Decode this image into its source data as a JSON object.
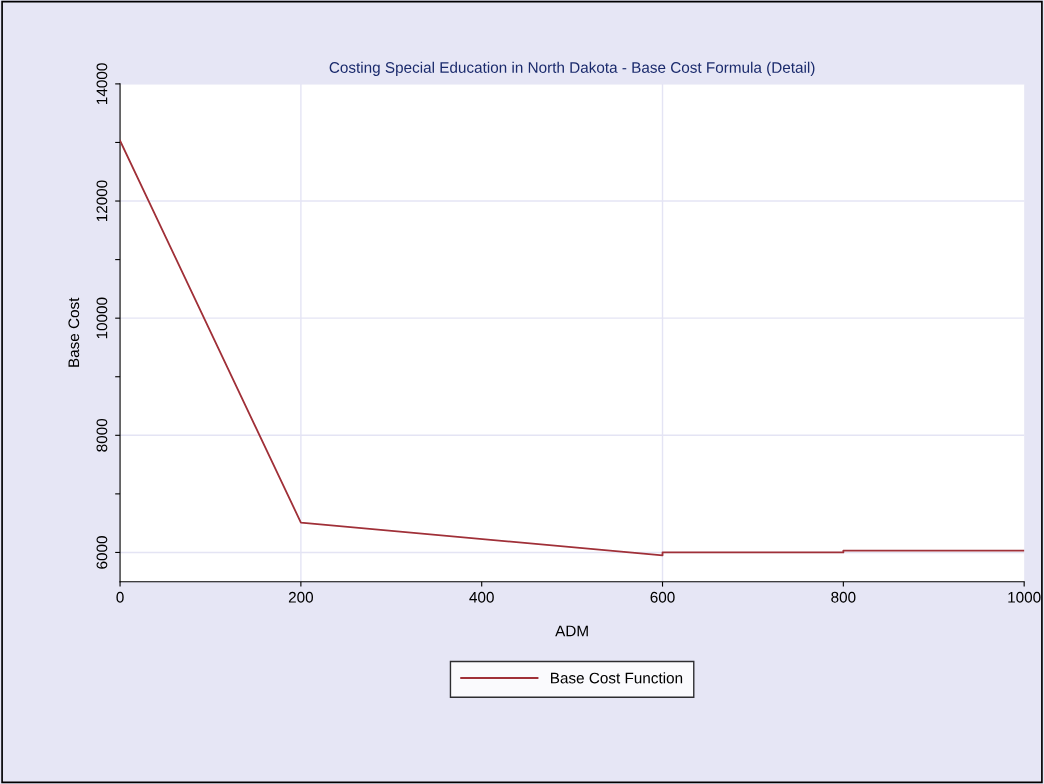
{
  "chart_data": {
    "type": "line",
    "title": "Costing Special Education in North Dakota - Base Cost Formula (Detail)",
    "xlabel": "ADM",
    "ylabel": "Base Cost",
    "x": [
      0,
      200,
      600,
      600,
      800,
      800,
      1000
    ],
    "series": [
      {
        "name": "Base Cost Function",
        "color": "#a03038",
        "values": [
          13030,
          6510,
          5950,
          6000,
          6000,
          6030,
          6030
        ]
      }
    ],
    "xlim": [
      0,
      1000
    ],
    "xticks": [
      0,
      200,
      400,
      600,
      800,
      1000
    ],
    "ylim": [
      5500,
      14000
    ],
    "yticks": [
      6000,
      {
        "value": 7000,
        "label": null
      },
      8000,
      {
        "value": 9000,
        "label": null
      },
      10000,
      {
        "value": 11000,
        "label": null
      },
      12000,
      {
        "value": 13000,
        "label": null
      },
      14000
    ],
    "ref_lines": [
      {
        "axis": "x",
        "value": 200,
        "color": "#e4e4f4"
      },
      {
        "axis": "x",
        "value": 600,
        "color": "#e4e4f4"
      }
    ],
    "grid": "y",
    "legend": "bottom",
    "marker": "none",
    "line_style": "solid"
  }
}
